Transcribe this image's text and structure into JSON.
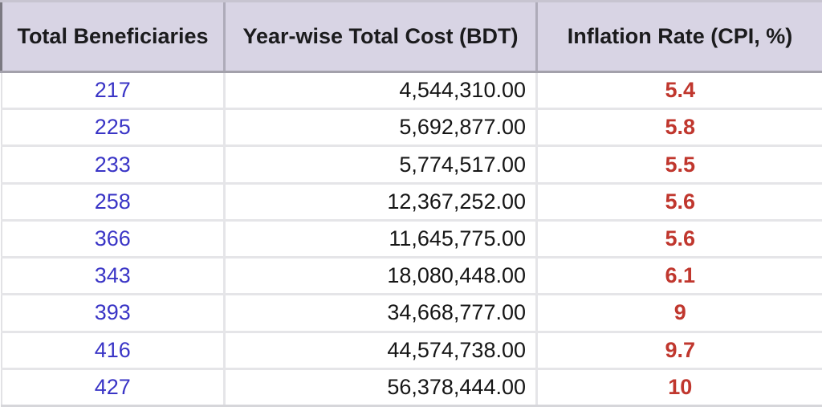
{
  "table": {
    "columns": [
      {
        "label": "Total Beneficiaries"
      },
      {
        "label": "Year-wise Total Cost (BDT)"
      },
      {
        "label": "Inflation Rate (CPI, %)"
      }
    ],
    "rows": [
      {
        "beneficiaries": "217",
        "cost": "4,544,310.00",
        "inflation": "5.4"
      },
      {
        "beneficiaries": "225",
        "cost": "5,692,877.00",
        "inflation": "5.8"
      },
      {
        "beneficiaries": "233",
        "cost": "5,774,517.00",
        "inflation": "5.5"
      },
      {
        "beneficiaries": "258",
        "cost": "12,367,252.00",
        "inflation": "5.6"
      },
      {
        "beneficiaries": "366",
        "cost": "11,645,775.00",
        "inflation": "5.6"
      },
      {
        "beneficiaries": "343",
        "cost": "18,080,448.00",
        "inflation": "6.1"
      },
      {
        "beneficiaries": "393",
        "cost": "34,668,777.00",
        "inflation": "9"
      },
      {
        "beneficiaries": "416",
        "cost": "44,574,738.00",
        "inflation": "9.7"
      },
      {
        "beneficiaries": "427",
        "cost": "56,378,444.00",
        "inflation": "10"
      }
    ]
  },
  "colors": {
    "header_bg": "#d8d4e4",
    "header_text": "#1b1b1d",
    "beneficiaries_text": "#3a35c6",
    "cost_text": "#161616",
    "inflation_text": "#c0372e",
    "body_grid": "#e5e5e8",
    "header_grid": "#aeabb9"
  },
  "chart_data": {
    "type": "table",
    "columns": [
      "Total Beneficiaries",
      "Year-wise Total Cost (BDT)",
      "Inflation Rate (CPI, %)"
    ],
    "rows": [
      [
        217,
        4544310.0,
        5.4
      ],
      [
        225,
        5692877.0,
        5.8
      ],
      [
        233,
        5774517.0,
        5.5
      ],
      [
        258,
        12367252.0,
        5.6
      ],
      [
        366,
        11645775.0,
        5.6
      ],
      [
        343,
        18080448.0,
        6.1
      ],
      [
        393,
        34668777.0,
        9
      ],
      [
        416,
        44574738.0,
        9.7
      ],
      [
        427,
        56378444.0,
        10
      ]
    ]
  }
}
